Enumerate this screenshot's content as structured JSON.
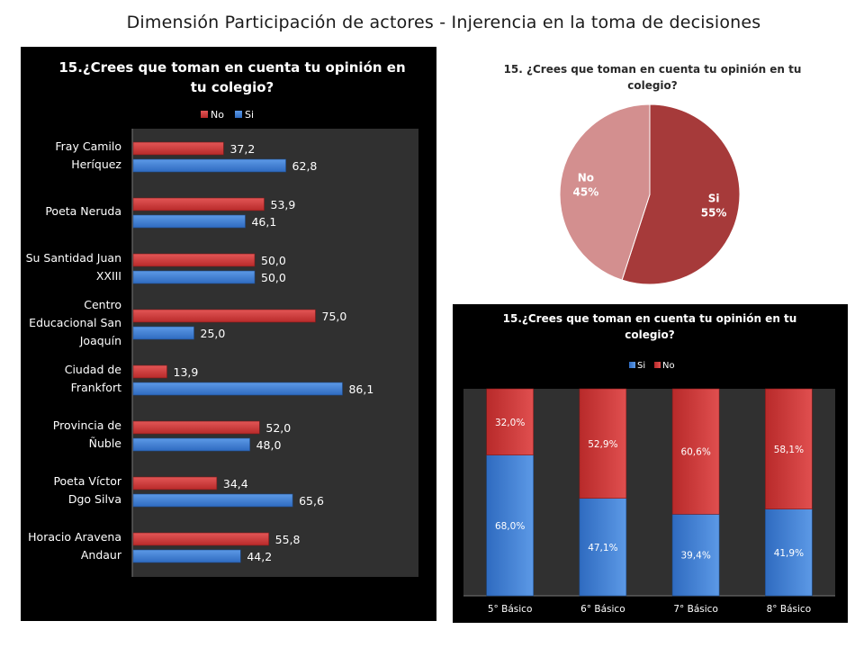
{
  "page_title": "Dimensión Participación de actores - Injerencia en la toma de decisiones",
  "colors": {
    "red": "#d43a3a",
    "blue": "#3e7fd6",
    "pie_si": "#a63a3a",
    "pie_no": "#d38f8f"
  },
  "chart_data": [
    {
      "type": "bar",
      "orientation": "horizontal",
      "title_lines": [
        "15.¿Crees que toman en cuenta tu opinión en",
        "tu colegio?"
      ],
      "legend": [
        "No",
        "Si"
      ],
      "legend_position": "top",
      "categories": [
        [
          "Fray Camilo",
          "Heríquez"
        ],
        [
          "Poeta Neruda"
        ],
        [
          "Su Santidad Juan",
          "XXIII"
        ],
        [
          "Centro",
          "Educacional San",
          "Joaquín"
        ],
        [
          "Ciudad de",
          "Frankfort"
        ],
        [
          "Provincia de",
          "Ñuble"
        ],
        [
          "Poeta Víctor",
          "Dgo Silva"
        ],
        [
          "Horacio Aravena",
          "Andaur"
        ]
      ],
      "series": [
        {
          "name": "No",
          "values": [
            37.2,
            53.9,
            50.0,
            75.0,
            13.9,
            52.0,
            34.4,
            55.8
          ],
          "labels": [
            "37,2",
            "53,9",
            "50,0",
            "75,0",
            "13,9",
            "52,0",
            "34,4",
            "55,8"
          ]
        },
        {
          "name": "Si",
          "values": [
            62.8,
            46.1,
            50.0,
            25.0,
            86.1,
            48.0,
            65.6,
            44.2
          ],
          "labels": [
            "62,8",
            "46,1",
            "50,0",
            "25,0",
            "86,1",
            "48,0",
            "65,6",
            "44,2"
          ]
        }
      ],
      "xlim": [
        0,
        100
      ],
      "grid": false
    },
    {
      "type": "pie",
      "title_lines": [
        "15. ¿Crees que toman en cuenta tu opinión en tu",
        "colegio?"
      ],
      "slices": [
        {
          "name": "Si",
          "value": 55,
          "label": "55%"
        },
        {
          "name": "No",
          "value": 45,
          "label": "45%"
        }
      ]
    },
    {
      "type": "bar",
      "stacked": true,
      "percent": true,
      "title_lines": [
        "15.¿Crees que toman en cuenta tu opinión en tu",
        "colegio?"
      ],
      "legend": [
        "Si",
        "No"
      ],
      "legend_position": "top",
      "categories": [
        "5° Básico",
        "6° Básico",
        "7° Básico",
        "8° Básico"
      ],
      "series": [
        {
          "name": "Si",
          "values": [
            68.0,
            47.1,
            39.4,
            41.9
          ],
          "labels": [
            "68,0%",
            "47,1%",
            "39,4%",
            "41,9%"
          ]
        },
        {
          "name": "No",
          "values": [
            32.0,
            52.9,
            60.6,
            58.1
          ],
          "labels": [
            "32,0%",
            "52,9%",
            "60,6%",
            "58,1%"
          ]
        }
      ],
      "ylim": [
        0,
        100
      ],
      "grid": false
    }
  ]
}
